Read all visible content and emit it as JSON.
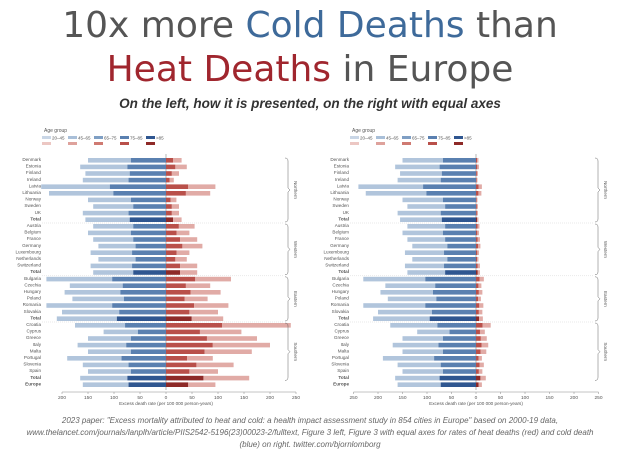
{
  "header": {
    "line1_prefix": "10x more ",
    "line1_emph": "Cold Deaths",
    "line1_suffix": " than",
    "line2_emph": "Heat Deaths",
    "line2_suffix": " in Europe",
    "subtitle": "On the left, how it is presented, on the right with equal axes"
  },
  "caption": "2023 paper: \"Excess mortality attributed to heat and cold: a health impact assessment study in 854 cities in Europe\" based on 2000-19 data, www.thelancet.com/journals/lanplh/article/PIIS2542-5196(23)00023-2/fulltext, Figure 3 left, Figure 3 with equal axes for rates of heat deaths (red) and cold death (blue) on right. twitter.com/bjornlomborg",
  "colors": {
    "cold": [
      "#c9d6e6",
      "#a9bfd8",
      "#7f9fc4",
      "#5a80b0",
      "#2f5690"
    ],
    "heat": [
      "#ecc7c3",
      "#dea29c",
      "#cf7a72",
      "#b9504a",
      "#8e2a28"
    ]
  },
  "chart_data": [
    {
      "type": "bar",
      "panel": "left",
      "legend_title": "Age group",
      "age_groups": [
        "20–45",
        "45–65",
        "65–75",
        "75–85",
        ">85"
      ],
      "regions": [
        "Northern",
        "Western",
        "Eastern",
        "Southern"
      ],
      "xlabel": "Excess death rate (per 100 000 person-years)",
      "cold_ticks": [
        "200",
        "150",
        "100",
        "50",
        "0"
      ],
      "heat_ticks": [
        "0",
        "50",
        "100",
        "150",
        "200",
        "250"
      ],
      "categories": [
        "Denmark",
        "Estonia",
        "Finland",
        "Ireland",
        "Latvia",
        "Lithuania",
        "Norway",
        "Sweden",
        "UK",
        "Total",
        "Austria",
        "Belgium",
        "France",
        "Germany",
        "Luxembourg",
        "Netherlands",
        "Switzerland",
        "Total",
        "Bulgaria",
        "Czechia",
        "Hungary",
        "Poland",
        "Romania",
        "Slovakia",
        "Total",
        "Croatia",
        "Cyprus",
        "Greece",
        "Italy",
        "Malta",
        "Portugal",
        "Slovenia",
        "Spain",
        "Total",
        "Europe"
      ],
      "cold_values": [
        150,
        165,
        155,
        160,
        240,
        225,
        150,
        140,
        160,
        155,
        140,
        150,
        140,
        130,
        145,
        130,
        145,
        140,
        230,
        185,
        195,
        180,
        230,
        200,
        210,
        175,
        120,
        150,
        170,
        150,
        190,
        160,
        150,
        165,
        160
      ],
      "heat_values": [
        30,
        40,
        25,
        15,
        95,
        85,
        20,
        25,
        25,
        30,
        55,
        45,
        60,
        70,
        45,
        40,
        60,
        60,
        125,
        85,
        105,
        80,
        120,
        100,
        110,
        240,
        145,
        175,
        200,
        165,
        90,
        130,
        100,
        160,
        95
      ],
      "xlim": [
        -200,
        260
      ]
    },
    {
      "type": "bar",
      "panel": "right",
      "legend_title": "Age group",
      "age_groups": [
        "20–45",
        "45–65",
        "65–75",
        "75–85",
        ">85"
      ],
      "regions": [
        "Northern",
        "Western",
        "Eastern",
        "Southern"
      ],
      "xlabel": "Excess death rate (per 100 000 person-years)",
      "cold_ticks": [
        "250",
        "200",
        "150",
        "100",
        "50",
        "0"
      ],
      "heat_ticks": [
        "0",
        "50",
        "100",
        "150",
        "200",
        "250"
      ],
      "categories": [
        "Denmark",
        "Estonia",
        "Finland",
        "Ireland",
        "Latvia",
        "Lithuania",
        "Norway",
        "Sweden",
        "UK",
        "Total",
        "Austria",
        "Belgium",
        "France",
        "Germany",
        "Luxembourg",
        "Netherlands",
        "Switzerland",
        "Total",
        "Bulgaria",
        "Czechia",
        "Hungary",
        "Poland",
        "Romania",
        "Slovakia",
        "Total",
        "Croatia",
        "Cyprus",
        "Greece",
        "Italy",
        "Malta",
        "Portugal",
        "Slovenia",
        "Spain",
        "Total",
        "Europe"
      ],
      "cold_values": [
        150,
        165,
        155,
        160,
        240,
        225,
        150,
        140,
        160,
        155,
        140,
        150,
        140,
        130,
        145,
        130,
        145,
        140,
        230,
        185,
        195,
        180,
        230,
        200,
        210,
        175,
        120,
        150,
        170,
        150,
        190,
        160,
        150,
        165,
        160
      ],
      "heat_values": [
        5,
        6,
        4,
        3,
        12,
        11,
        3,
        4,
        4,
        5,
        7,
        6,
        8,
        9,
        6,
        5,
        8,
        8,
        16,
        11,
        13,
        10,
        15,
        13,
        14,
        30,
        18,
        22,
        25,
        21,
        12,
        16,
        13,
        20,
        12
      ],
      "xlim": [
        -260,
        260
      ]
    }
  ]
}
